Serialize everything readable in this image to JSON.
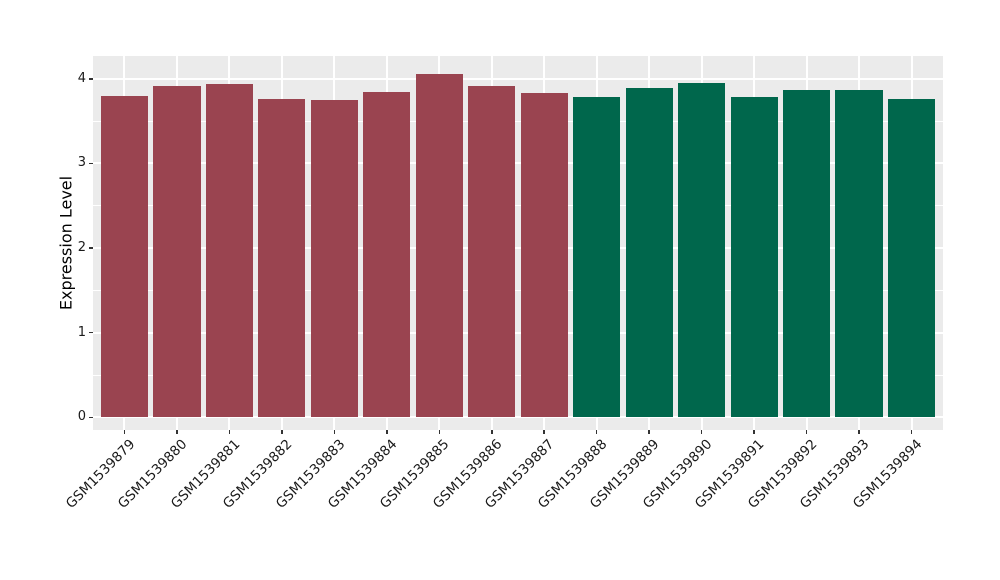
{
  "chart_data": {
    "type": "bar",
    "title": "",
    "xlabel": "",
    "ylabel": "Expression Level",
    "categories": [
      "GSM1539879",
      "GSM1539880",
      "GSM1539881",
      "GSM1539882",
      "GSM1539883",
      "GSM1539884",
      "GSM1539885",
      "GSM1539886",
      "GSM1539887",
      "GSM1539888",
      "GSM1539889",
      "GSM1539890",
      "GSM1539891",
      "GSM1539892",
      "GSM1539893",
      "GSM1539894"
    ],
    "values": [
      3.8,
      3.91,
      3.94,
      3.76,
      3.75,
      3.85,
      4.06,
      3.91,
      3.83,
      3.79,
      3.89,
      3.95,
      3.79,
      3.87,
      3.87,
      3.76
    ],
    "bar_colors": [
      "#9A4450",
      "#9A4450",
      "#9A4450",
      "#9A4450",
      "#9A4450",
      "#9A4450",
      "#9A4450",
      "#9A4450",
      "#9A4450",
      "#00674C",
      "#00674C",
      "#00674C",
      "#00674C",
      "#00674C",
      "#00674C",
      "#00674C"
    ],
    "yticks": [
      0,
      1,
      2,
      3,
      4
    ],
    "minor_yticks": [
      0.5,
      1.5,
      2.5,
      3.5
    ],
    "ylim": [
      -0.15,
      4.27
    ],
    "bar_width_fraction": 0.9,
    "grid": true,
    "legend": "none",
    "panel_bg": "#EBEBEB",
    "grid_color": "#FFFFFF",
    "tick_color": "#333333",
    "text_color": "#1A1A1A",
    "background": "#FFFFFF"
  }
}
